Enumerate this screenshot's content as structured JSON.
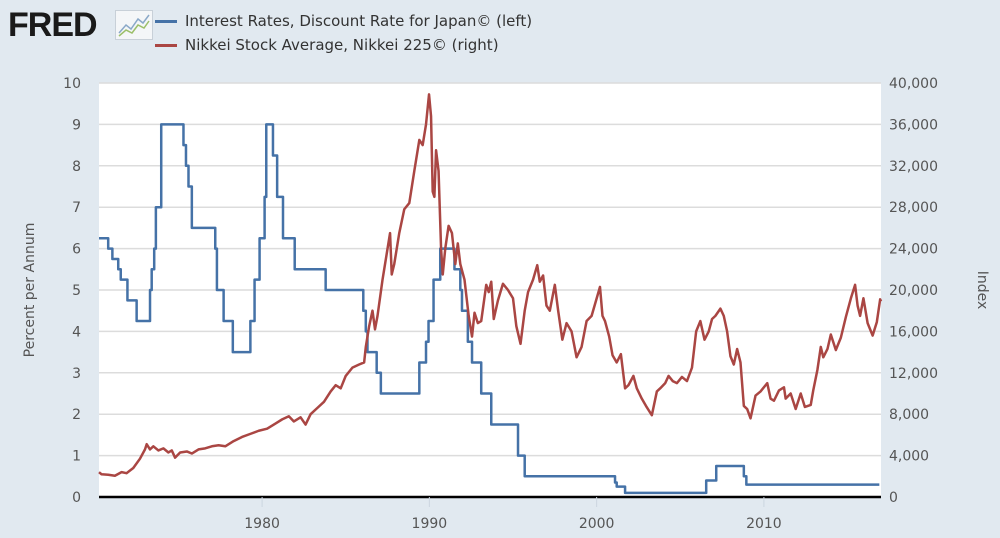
{
  "logo": "FRED",
  "chart_data": {
    "type": "line",
    "xlim": [
      1970.25,
      2017.0
    ],
    "x_ticks": [
      1980,
      1990,
      2000,
      2010
    ],
    "x_tick_labels": [
      "1980",
      "1990",
      "2000",
      "2010"
    ],
    "ylabel_left": "Percent per Annum",
    "ylabel_right": "Index",
    "ylim_left": [
      0,
      10
    ],
    "ylim_right": [
      0,
      40000
    ],
    "left_ticks": [
      "0",
      "1",
      "2",
      "3",
      "4",
      "5",
      "6",
      "7",
      "8",
      "9",
      "10"
    ],
    "right_ticks": [
      "0",
      "4,000",
      "8,000",
      "12,000",
      "16,000",
      "20,000",
      "24,000",
      "28,000",
      "32,000",
      "36,000",
      "40,000"
    ],
    "grid": true,
    "series": [
      {
        "name": "Interest Rates, Discount Rate for Japan© (left)",
        "axis": "left",
        "color": "#4572a7",
        "step": true,
        "points": [
          [
            1970.25,
            6.25
          ],
          [
            1970.8,
            6.0
          ],
          [
            1971.05,
            5.75
          ],
          [
            1971.4,
            5.5
          ],
          [
            1971.55,
            5.25
          ],
          [
            1971.95,
            4.75
          ],
          [
            1972.5,
            4.25
          ],
          [
            1973.3,
            5.0
          ],
          [
            1973.4,
            5.5
          ],
          [
            1973.55,
            6.0
          ],
          [
            1973.65,
            7.0
          ],
          [
            1973.97,
            9.0
          ],
          [
            1975.3,
            8.5
          ],
          [
            1975.45,
            8.0
          ],
          [
            1975.6,
            7.5
          ],
          [
            1975.8,
            6.5
          ],
          [
            1977.2,
            6.0
          ],
          [
            1977.3,
            5.0
          ],
          [
            1977.7,
            4.25
          ],
          [
            1978.25,
            3.5
          ],
          [
            1979.3,
            4.25
          ],
          [
            1979.55,
            5.25
          ],
          [
            1979.85,
            6.25
          ],
          [
            1980.15,
            7.25
          ],
          [
            1980.25,
            9.0
          ],
          [
            1980.65,
            8.25
          ],
          [
            1980.9,
            7.25
          ],
          [
            1981.25,
            6.25
          ],
          [
            1981.95,
            5.5
          ],
          [
            1983.8,
            5.0
          ],
          [
            1986.05,
            4.5
          ],
          [
            1986.2,
            4.0
          ],
          [
            1986.3,
            3.5
          ],
          [
            1986.85,
            3.0
          ],
          [
            1987.1,
            2.5
          ],
          [
            1989.4,
            3.25
          ],
          [
            1989.8,
            3.75
          ],
          [
            1989.95,
            4.25
          ],
          [
            1990.25,
            5.25
          ],
          [
            1990.65,
            6.0
          ],
          [
            1991.5,
            5.5
          ],
          [
            1991.85,
            5.0
          ],
          [
            1991.95,
            4.5
          ],
          [
            1992.3,
            3.75
          ],
          [
            1992.55,
            3.25
          ],
          [
            1993.1,
            2.5
          ],
          [
            1993.7,
            1.75
          ],
          [
            1995.3,
            1.0
          ],
          [
            1995.7,
            0.5
          ],
          [
            2001.1,
            0.35
          ],
          [
            2001.2,
            0.25
          ],
          [
            2001.7,
            0.1
          ],
          [
            2006.55,
            0.4
          ],
          [
            2007.15,
            0.75
          ],
          [
            2008.8,
            0.5
          ],
          [
            2008.95,
            0.3
          ],
          [
            2016.9,
            0.3
          ]
        ]
      },
      {
        "name": "Nikkei Stock Average, Nikkei 225© (right)",
        "axis": "right",
        "color": "#aa4643",
        "step": false,
        "points": [
          [
            1970.25,
            2400
          ],
          [
            1970.4,
            2200
          ],
          [
            1970.8,
            2150
          ],
          [
            1971.2,
            2050
          ],
          [
            1971.6,
            2400
          ],
          [
            1971.9,
            2300
          ],
          [
            1972.3,
            2800
          ],
          [
            1972.7,
            3700
          ],
          [
            1973.0,
            4600
          ],
          [
            1973.1,
            5100
          ],
          [
            1973.3,
            4600
          ],
          [
            1973.5,
            4900
          ],
          [
            1973.8,
            4500
          ],
          [
            1974.1,
            4700
          ],
          [
            1974.4,
            4300
          ],
          [
            1974.6,
            4500
          ],
          [
            1974.8,
            3800
          ],
          [
            1975.1,
            4300
          ],
          [
            1975.5,
            4400
          ],
          [
            1975.8,
            4200
          ],
          [
            1976.2,
            4600
          ],
          [
            1976.6,
            4700
          ],
          [
            1977.0,
            4900
          ],
          [
            1977.4,
            5000
          ],
          [
            1977.8,
            4900
          ],
          [
            1978.3,
            5400
          ],
          [
            1978.8,
            5800
          ],
          [
            1979.3,
            6100
          ],
          [
            1979.8,
            6400
          ],
          [
            1980.3,
            6600
          ],
          [
            1980.8,
            7100
          ],
          [
            1981.2,
            7500
          ],
          [
            1981.6,
            7800
          ],
          [
            1981.9,
            7300
          ],
          [
            1982.3,
            7700
          ],
          [
            1982.6,
            7000
          ],
          [
            1982.9,
            8000
          ],
          [
            1983.3,
            8600
          ],
          [
            1983.7,
            9200
          ],
          [
            1984.1,
            10200
          ],
          [
            1984.4,
            10800
          ],
          [
            1984.7,
            10500
          ],
          [
            1985.0,
            11700
          ],
          [
            1985.4,
            12500
          ],
          [
            1985.8,
            12800
          ],
          [
            1986.1,
            13000
          ],
          [
            1986.2,
            14500
          ],
          [
            1986.4,
            16500
          ],
          [
            1986.6,
            18000
          ],
          [
            1986.75,
            16200
          ],
          [
            1986.9,
            17500
          ],
          [
            1987.2,
            21000
          ],
          [
            1987.5,
            24000
          ],
          [
            1987.65,
            25500
          ],
          [
            1987.75,
            21500
          ],
          [
            1987.9,
            22500
          ],
          [
            1988.2,
            25500
          ],
          [
            1988.5,
            27800
          ],
          [
            1988.8,
            28400
          ],
          [
            1989.1,
            31500
          ],
          [
            1989.4,
            34500
          ],
          [
            1989.6,
            34000
          ],
          [
            1989.8,
            36000
          ],
          [
            1989.98,
            38900
          ],
          [
            1990.1,
            36800
          ],
          [
            1990.2,
            29500
          ],
          [
            1990.3,
            29000
          ],
          [
            1990.4,
            33500
          ],
          [
            1990.55,
            31500
          ],
          [
            1990.7,
            24000
          ],
          [
            1990.8,
            21500
          ],
          [
            1990.95,
            24000
          ],
          [
            1991.15,
            26200
          ],
          [
            1991.35,
            25500
          ],
          [
            1991.55,
            22500
          ],
          [
            1991.7,
            24500
          ],
          [
            1991.85,
            22500
          ],
          [
            1992.1,
            21000
          ],
          [
            1992.35,
            17500
          ],
          [
            1992.55,
            15500
          ],
          [
            1992.7,
            17800
          ],
          [
            1992.9,
            16800
          ],
          [
            1993.1,
            17000
          ],
          [
            1993.4,
            20500
          ],
          [
            1993.55,
            19800
          ],
          [
            1993.7,
            20800
          ],
          [
            1993.85,
            17200
          ],
          [
            1994.1,
            19000
          ],
          [
            1994.4,
            20600
          ],
          [
            1994.7,
            20000
          ],
          [
            1995.0,
            19200
          ],
          [
            1995.2,
            16500
          ],
          [
            1995.45,
            14800
          ],
          [
            1995.7,
            18000
          ],
          [
            1995.9,
            19800
          ],
          [
            1996.2,
            21000
          ],
          [
            1996.45,
            22400
          ],
          [
            1996.6,
            20800
          ],
          [
            1996.8,
            21400
          ],
          [
            1997.0,
            18500
          ],
          [
            1997.2,
            18000
          ],
          [
            1997.5,
            20500
          ],
          [
            1997.7,
            18000
          ],
          [
            1997.95,
            15200
          ],
          [
            1998.2,
            16800
          ],
          [
            1998.5,
            16000
          ],
          [
            1998.8,
            13500
          ],
          [
            1999.1,
            14500
          ],
          [
            1999.4,
            17000
          ],
          [
            1999.7,
            17500
          ],
          [
            2000.2,
            20300
          ],
          [
            2000.35,
            17500
          ],
          [
            2000.5,
            17000
          ],
          [
            2000.75,
            15500
          ],
          [
            2000.95,
            13700
          ],
          [
            2001.2,
            13000
          ],
          [
            2001.45,
            13800
          ],
          [
            2001.7,
            10500
          ],
          [
            2001.9,
            10800
          ],
          [
            2002.2,
            11700
          ],
          [
            2002.4,
            10500
          ],
          [
            2002.7,
            9500
          ],
          [
            2002.95,
            8800
          ],
          [
            2003.3,
            7900
          ],
          [
            2003.6,
            10200
          ],
          [
            2003.8,
            10500
          ],
          [
            2004.1,
            11000
          ],
          [
            2004.3,
            11700
          ],
          [
            2004.55,
            11200
          ],
          [
            2004.8,
            11000
          ],
          [
            2005.1,
            11600
          ],
          [
            2005.4,
            11200
          ],
          [
            2005.7,
            12500
          ],
          [
            2005.95,
            16000
          ],
          [
            2006.2,
            17000
          ],
          [
            2006.45,
            15200
          ],
          [
            2006.7,
            16000
          ],
          [
            2006.9,
            17200
          ],
          [
            2007.1,
            17500
          ],
          [
            2007.4,
            18200
          ],
          [
            2007.6,
            17500
          ],
          [
            2007.8,
            16000
          ],
          [
            2008.0,
            13600
          ],
          [
            2008.2,
            12800
          ],
          [
            2008.4,
            14300
          ],
          [
            2008.6,
            13000
          ],
          [
            2008.8,
            8800
          ],
          [
            2009.0,
            8500
          ],
          [
            2009.2,
            7600
          ],
          [
            2009.5,
            9800
          ],
          [
            2009.8,
            10200
          ],
          [
            2010.2,
            11000
          ],
          [
            2010.4,
            9500
          ],
          [
            2010.6,
            9300
          ],
          [
            2010.9,
            10300
          ],
          [
            2011.2,
            10600
          ],
          [
            2011.3,
            9500
          ],
          [
            2011.6,
            10000
          ],
          [
            2011.9,
            8500
          ],
          [
            2012.2,
            10000
          ],
          [
            2012.45,
            8700
          ],
          [
            2012.8,
            8900
          ],
          [
            2012.95,
            10300
          ],
          [
            2013.2,
            12300
          ],
          [
            2013.4,
            14500
          ],
          [
            2013.55,
            13500
          ],
          [
            2013.8,
            14300
          ],
          [
            2014.0,
            15700
          ],
          [
            2014.3,
            14200
          ],
          [
            2014.6,
            15400
          ],
          [
            2014.9,
            17400
          ],
          [
            2015.2,
            19200
          ],
          [
            2015.45,
            20500
          ],
          [
            2015.6,
            18500
          ],
          [
            2015.75,
            17500
          ],
          [
            2015.95,
            19200
          ],
          [
            2016.2,
            16800
          ],
          [
            2016.5,
            15600
          ],
          [
            2016.75,
            16900
          ],
          [
            2016.95,
            19100
          ],
          [
            2017.0,
            18900
          ]
        ]
      }
    ]
  }
}
